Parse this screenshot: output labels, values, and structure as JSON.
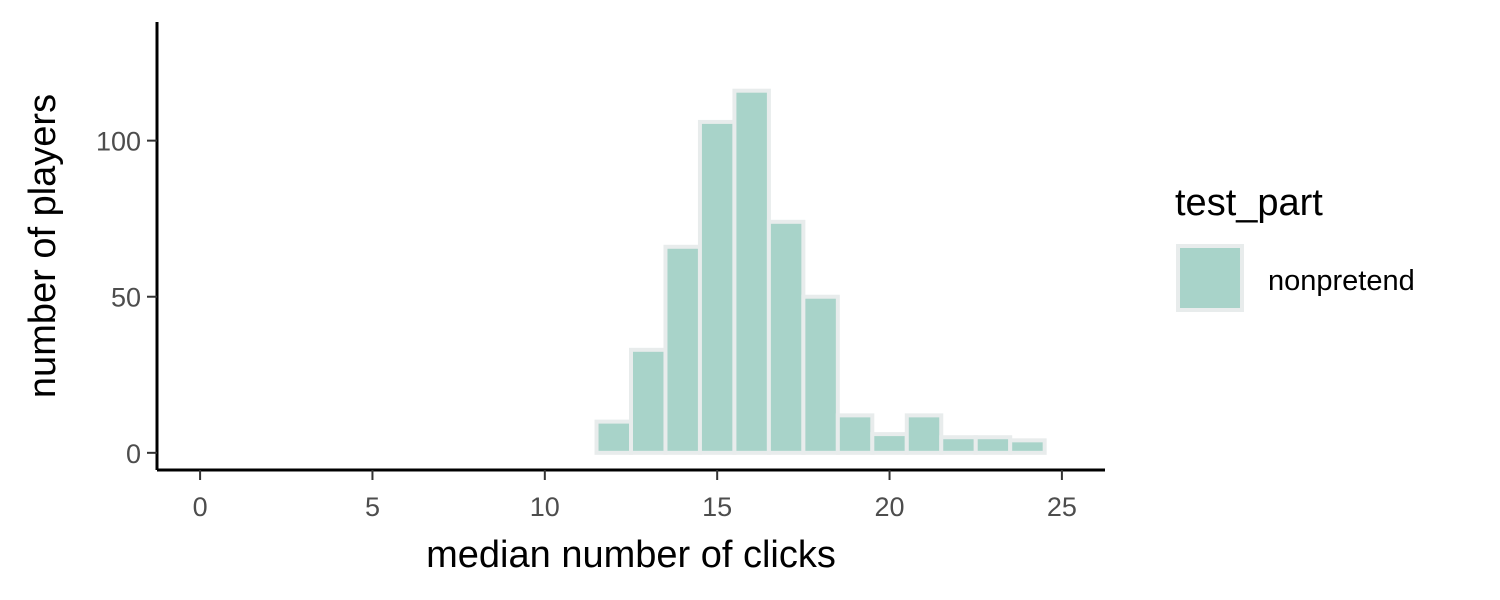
{
  "chart_data": {
    "type": "bar",
    "xlabel": "median number of clicks",
    "ylabel": "number of players",
    "xlim": [
      -1.25,
      26.25
    ],
    "ylim": [
      -5.5,
      138
    ],
    "x_ticks": [
      0,
      5,
      10,
      15,
      20,
      25
    ],
    "y_ticks": [
      0,
      50,
      100
    ],
    "bin_width": 1,
    "grid": false,
    "legend_position": "right",
    "legend_title": "test_part",
    "series": [
      {
        "name": "nonpretend",
        "fill": "#a8d3c9",
        "outline": "#e8ecec",
        "x": [
          12,
          13,
          14,
          15,
          16,
          17,
          18,
          19,
          20,
          21,
          22,
          23,
          24
        ],
        "values": [
          10,
          33,
          66,
          106,
          116,
          74,
          50,
          12,
          6,
          12,
          5,
          5,
          4
        ]
      }
    ]
  }
}
